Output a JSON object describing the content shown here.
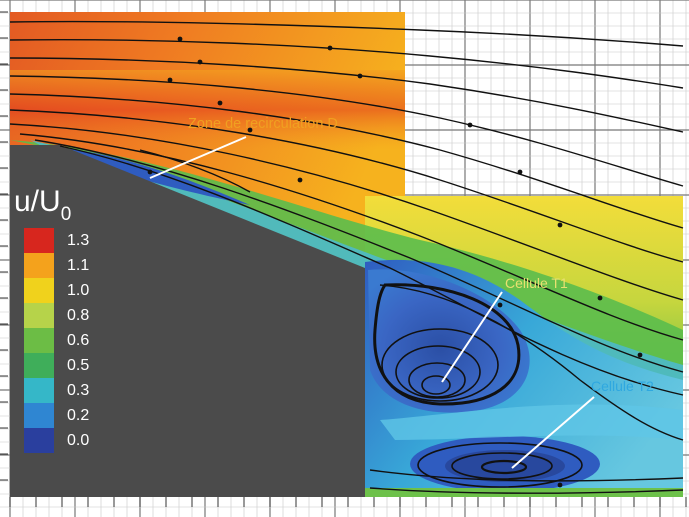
{
  "figure": {
    "colorbar": {
      "title_main": "u/U",
      "title_sub": "0",
      "ticks": [
        "1.3",
        "1.1",
        "1.0",
        "0.8",
        "0.6",
        "0.5",
        "0.3",
        "0.2",
        "0.0"
      ],
      "colors": [
        "#d7261e",
        "#f4a21c",
        "#f0d21c",
        "#b6d34a",
        "#6cbd45",
        "#3fae5a",
        "#35b7c8",
        "#2f86d2",
        "#2a3f9e"
      ]
    },
    "annotations": {
      "zone_d": "Zone de recirculation D",
      "cellule_t1": "Cellule T1",
      "cellule_t2": "Cellule T2"
    },
    "colors": {
      "body": "#4b4b4b",
      "grid": "#777777",
      "streamline": "#111111",
      "label_orange": "#f0a020",
      "label_yellow": "#e8e070",
      "label_blue": "#2fa8e0"
    }
  }
}
